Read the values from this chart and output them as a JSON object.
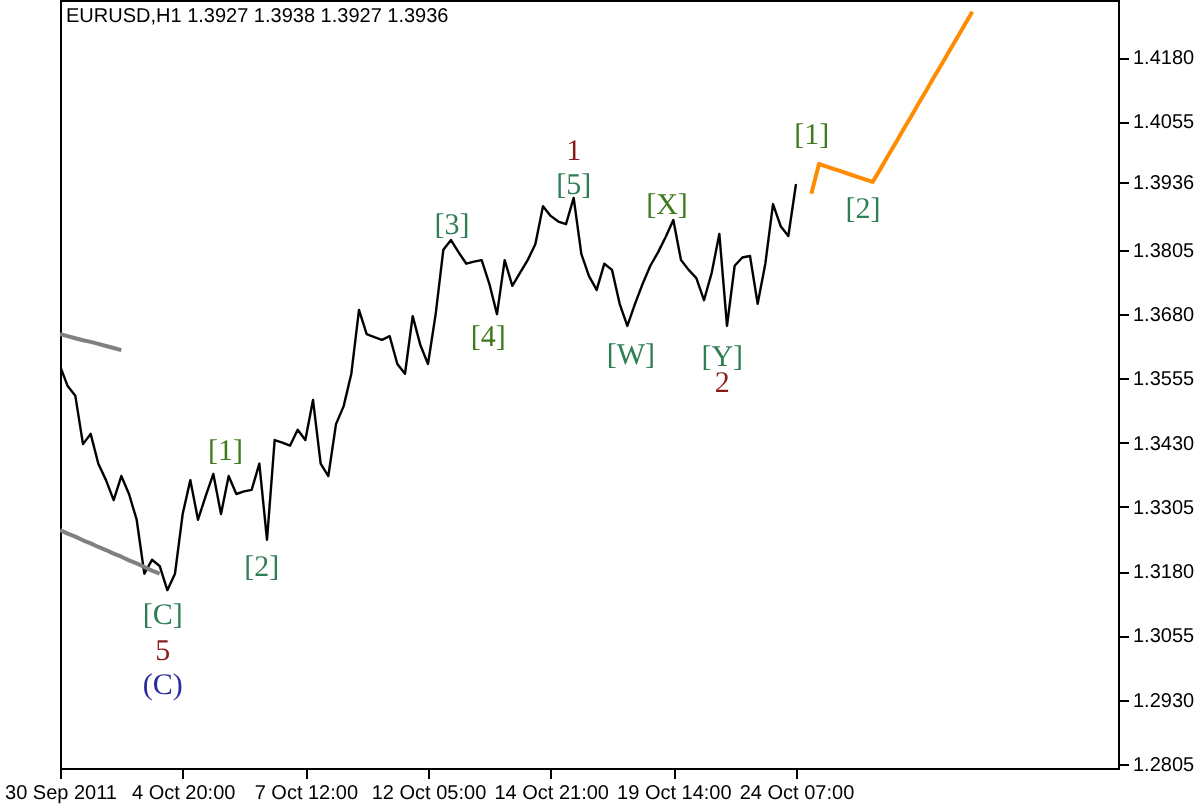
{
  "chart_data": {
    "type": "line",
    "title": "EURUSD,H1 1.3927 1.3938 1.3927 1.3936",
    "categories": [
      "30 Sep 2011",
      null,
      null,
      null,
      null,
      null,
      null,
      null,
      null,
      null,
      null,
      null,
      null,
      null,
      null,
      null,
      "4 Oct 20:00",
      null,
      null,
      null,
      null,
      null,
      null,
      null,
      null,
      null,
      null,
      null,
      null,
      null,
      null,
      null,
      "7 Oct 12:00",
      null,
      null,
      null,
      null,
      null,
      null,
      null,
      null,
      null,
      null,
      null,
      null,
      null,
      null,
      null,
      "12 Oct 05:00",
      null,
      null,
      null,
      null,
      null,
      null,
      null,
      null,
      null,
      null,
      null,
      null,
      null,
      null,
      null,
      "14 Oct 21:00",
      null,
      null,
      null,
      null,
      null,
      null,
      null,
      null,
      null,
      null,
      null,
      null,
      null,
      null,
      null,
      "19 Oct 14:00",
      null,
      null,
      null,
      null,
      null,
      null,
      null,
      null,
      null,
      null,
      null,
      null,
      null,
      null,
      null,
      "24 Oct 07:00",
      null,
      null,
      null,
      null,
      null,
      null,
      null,
      null,
      null,
      null,
      null,
      null,
      null,
      null,
      null,
      null,
      null,
      null,
      null,
      null,
      null,
      null,
      null,
      null,
      null,
      null,
      null,
      null,
      null,
      null,
      null,
      null,
      null,
      null,
      null,
      null,
      null,
      null,
      null,
      null,
      null,
      null
    ],
    "ylim": [
      1.2797,
      1.4291
    ],
    "yticks": [
      1.2805,
      {
        "value": 1.293,
        "label": "1.2930"
      },
      1.3055,
      {
        "value": 1.318,
        "label": "1.3180"
      },
      1.3305,
      {
        "value": 1.343,
        "label": "1.3430"
      },
      1.3555,
      {
        "value": 1.368,
        "label": "1.3680"
      },
      1.3805,
      1.3936,
      1.4055,
      {
        "value": 1.418,
        "label": "1.4180"
      }
    ],
    "grid": false,
    "marker": "none",
    "line_style": "solid",
    "series": [
      {
        "color": "#000000",
        "values": [
          1.3579,
          1.354,
          1.3521,
          1.3427,
          1.3447,
          1.3389,
          1.3357,
          1.3318,
          1.3365,
          1.333,
          1.328,
          1.3175,
          1.3202,
          1.319,
          1.3143,
          1.3175,
          1.3291,
          1.3357,
          1.328,
          1.3326,
          1.3369,
          1.3291,
          1.3365,
          1.333,
          1.3335,
          1.3338,
          1.3389,
          1.3241,
          1.3435,
          1.343,
          1.3424,
          1.3455,
          1.3435,
          1.3513,
          1.3389,
          1.3365,
          1.3466,
          1.3501,
          1.3564,
          1.3688,
          1.3641,
          1.3635,
          1.363,
          1.3637,
          1.3583,
          1.3564,
          1.3676,
          1.362,
          1.3583,
          1.368,
          1.3805,
          1.3824,
          1.38,
          1.3778,
          1.3782,
          1.3785,
          1.3739,
          1.368,
          1.3785,
          1.3735,
          1.376,
          1.3785,
          1.3816,
          1.389,
          1.3871,
          1.386,
          1.3855,
          1.3906,
          1.3797,
          1.3754,
          1.3727,
          1.3778,
          1.3766,
          1.37,
          1.3657,
          1.37,
          1.3739,
          1.3774,
          1.38,
          1.383,
          1.3863,
          1.3785,
          1.3766,
          1.375,
          1.3707,
          1.376,
          1.3836,
          1.3657,
          1.3774,
          1.379,
          1.3793,
          1.37,
          1.3778,
          1.3894,
          1.3851,
          1.3832,
          1.3933,
          null,
          null,
          null,
          null,
          null,
          null,
          null,
          null,
          null,
          null,
          null,
          null,
          null,
          null,
          null,
          null,
          null,
          null,
          null,
          null,
          null,
          null,
          null,
          null,
          null,
          null,
          null,
          null,
          null,
          null,
          null,
          null,
          null,
          null,
          null,
          null,
          null,
          null,
          null,
          null,
          null,
          null
        ]
      },
      {
        "color": "#ff8c00",
        "values": [
          null,
          null,
          null,
          null,
          null,
          null,
          null,
          null,
          null,
          null,
          null,
          null,
          null,
          null,
          null,
          null,
          null,
          null,
          null,
          null,
          null,
          null,
          null,
          null,
          null,
          null,
          null,
          null,
          null,
          null,
          null,
          null,
          null,
          null,
          null,
          null,
          null,
          null,
          null,
          null,
          null,
          null,
          null,
          null,
          null,
          null,
          null,
          null,
          null,
          null,
          null,
          null,
          null,
          null,
          null,
          null,
          null,
          null,
          null,
          null,
          null,
          null,
          null,
          null,
          null,
          null,
          null,
          null,
          null,
          null,
          null,
          null,
          null,
          null,
          null,
          null,
          null,
          null,
          null,
          null,
          null,
          null,
          null,
          null,
          null,
          null,
          null,
          null,
          null,
          null,
          null,
          null,
          null,
          null,
          null,
          null,
          null,
          null,
          1.3914,
          1.3972,
          1.3967,
          1.3962,
          1.3957,
          1.3952,
          1.3947,
          1.3942,
          1.3937,
          1.3962,
          1.3988,
          1.4013,
          1.4039,
          1.4064,
          1.409,
          1.4115,
          1.4141,
          1.4166,
          1.4192,
          1.4217,
          1.4243,
          1.4268,
          null,
          null,
          null,
          null,
          null,
          null,
          null,
          null,
          null,
          null,
          null,
          null,
          null,
          null,
          null,
          null,
          null,
          null,
          null
        ]
      },
      {
        "color": "#808080",
        "values": [
          1.3641,
          1.3637,
          1.3633,
          1.3629,
          1.3626,
          1.3622,
          1.3618,
          1.3614,
          1.361,
          null,
          null,
          null,
          null,
          null,
          null,
          null,
          null,
          null,
          null,
          null,
          null,
          null,
          null,
          null,
          null,
          null,
          null,
          null,
          null,
          null,
          null,
          null,
          null,
          null,
          null,
          null,
          null,
          null,
          null,
          null,
          null,
          null,
          null,
          null,
          null,
          null,
          null,
          null,
          null,
          null,
          null,
          null,
          null,
          null,
          null,
          null,
          null,
          null,
          null,
          null,
          null,
          null,
          null,
          null,
          null,
          null,
          null,
          null,
          null,
          null,
          null,
          null,
          null,
          null,
          null,
          null,
          null,
          null,
          null,
          null,
          null,
          null,
          null,
          null,
          null,
          null,
          null,
          null,
          null,
          null,
          null,
          null,
          null,
          null,
          null,
          null,
          null,
          null,
          null,
          null,
          null,
          null,
          null,
          null,
          null,
          null,
          null,
          null,
          null,
          null,
          null,
          null,
          null,
          null,
          null,
          null,
          null,
          null,
          null,
          null,
          null,
          null,
          null,
          null,
          null,
          null,
          null,
          null,
          null,
          null,
          null,
          null,
          null,
          null,
          null,
          null,
          null,
          null,
          null
        ]
      },
      {
        "color": "#808080",
        "values": [
          1.326,
          1.3253,
          1.3247,
          1.324,
          1.3234,
          1.3227,
          1.3221,
          1.3214,
          1.3208,
          1.3201,
          1.3195,
          1.3188,
          1.3181,
          1.3175,
          null,
          null,
          null,
          null,
          null,
          null,
          null,
          null,
          null,
          null,
          null,
          null,
          null,
          null,
          null,
          null,
          null,
          null,
          null,
          null,
          null,
          null,
          null,
          null,
          null,
          null,
          null,
          null,
          null,
          null,
          null,
          null,
          null,
          null,
          null,
          null,
          null,
          null,
          null,
          null,
          null,
          null,
          null,
          null,
          null,
          null,
          null,
          null,
          null,
          null,
          null,
          null,
          null,
          null,
          null,
          null,
          null,
          null,
          null,
          null,
          null,
          null,
          null,
          null,
          null,
          null,
          null,
          null,
          null,
          null,
          null,
          null,
          null,
          null,
          null,
          null,
          null,
          null,
          null,
          null,
          null,
          null,
          null,
          null,
          null,
          null,
          null,
          null,
          null,
          null,
          null,
          null,
          null,
          null,
          null,
          null,
          null,
          null,
          null,
          null,
          null,
          null,
          null,
          null,
          null,
          null,
          null,
          null,
          null,
          null,
          null,
          null,
          null,
          null,
          null,
          null,
          null,
          null,
          null,
          null,
          null,
          null,
          null,
          null,
          null
        ]
      }
    ],
    "annotations": [
      "[C]",
      "5",
      "(C)",
      "[1]",
      "[2]",
      "[3]",
      "[4]",
      "1",
      "[5]",
      "[W]",
      "[X]",
      "[Y]",
      "2",
      "[1]",
      "[2]"
    ]
  }
}
